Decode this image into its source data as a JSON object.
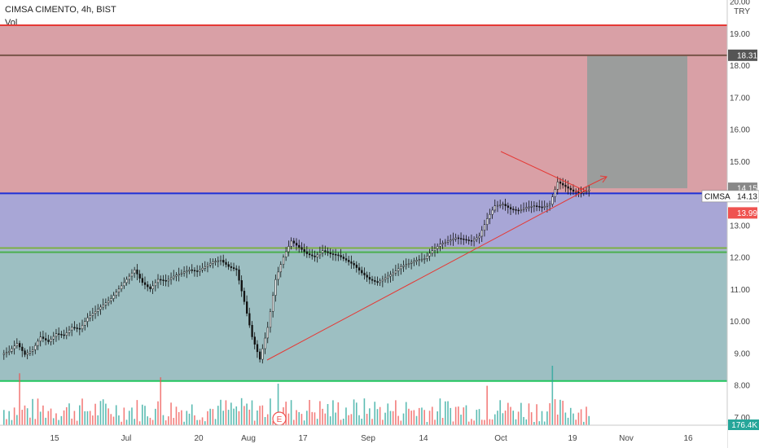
{
  "header": {
    "title": "CIMSA CIMENTO, 4h, BIST",
    "indicator": "Vol"
  },
  "chart_data": {
    "type": "candlestick",
    "symbol": "CIMSA",
    "currency": "TRY",
    "y_ticks": [
      "20.00",
      "19.00",
      "18.00",
      "17.00",
      "16.00",
      "15.00",
      "14.00",
      "13.00",
      "12.00",
      "11.00",
      "10.00",
      "9.00",
      "8.00",
      "7.00"
    ],
    "x_ticks": [
      "15",
      "Jul",
      "20",
      "Aug",
      "17",
      "Sep",
      "14",
      "Oct",
      "19",
      "Nov",
      "16"
    ],
    "ylim": [
      6.8,
      20.0
    ],
    "price_labels": [
      {
        "value": 18.31,
        "text": "18.31",
        "color": "#555555",
        "text_color": "#ffffff"
      },
      {
        "value": 14.15,
        "text": "14.15",
        "color": "#888888",
        "text_color": "#ffffff"
      },
      {
        "value": 14.13,
        "text": "14.13",
        "name": "CIMSA",
        "color": "#ffffff",
        "text_color": "#111111"
      },
      {
        "value": 13.99,
        "text": "13.99",
        "color": "#ef5350",
        "text_color": "#ffffff"
      }
    ],
    "volume_label": "176.4K",
    "horizontal_lines": [
      {
        "value": 19.25,
        "color": "#e53935"
      },
      {
        "value": 18.31,
        "color": "#795548"
      },
      {
        "value": 13.99,
        "color": "#1e2fd6"
      },
      {
        "value": 12.28,
        "color": "#7cb342"
      },
      {
        "value": 12.15,
        "color": "#4caf50"
      },
      {
        "value": 8.12,
        "color": "#22c55e"
      }
    ],
    "zones": [
      {
        "from": 13.99,
        "to": 19.25,
        "color": "#d9a0a6"
      },
      {
        "from": 12.22,
        "to": 13.99,
        "color": "#a8a6d6"
      },
      {
        "from": 8.12,
        "to": 12.22,
        "color": "#9dbfc2"
      }
    ],
    "projection_box": {
      "from": 14.15,
      "to": 18.31,
      "color": "#8f9c9a"
    },
    "series_close": [
      9.05,
      9.3,
      8.95,
      9.1,
      9.5,
      9.35,
      9.6,
      9.55,
      9.8,
      9.75,
      10.1,
      10.3,
      10.5,
      10.7,
      11.0,
      11.3,
      11.6,
      11.2,
      11.0,
      11.3,
      11.25,
      11.4,
      11.5,
      11.6,
      11.55,
      11.7,
      11.85,
      11.9,
      11.7,
      11.6,
      10.6,
      9.5,
      8.8,
      9.8,
      11.3,
      12.0,
      12.5,
      12.3,
      12.1,
      12.0,
      12.2,
      12.1,
      12.05,
      11.9,
      11.75,
      11.5,
      11.3,
      11.2,
      11.35,
      11.5,
      11.7,
      11.8,
      11.9,
      11.95,
      12.2,
      12.4,
      12.5,
      12.6,
      12.55,
      12.5,
      12.65,
      13.2,
      13.6,
      13.65,
      13.5,
      13.45,
      13.55,
      13.6,
      13.55,
      13.65,
      14.35,
      14.2,
      14.05,
      14.0,
      14.1
    ],
    "volume_max_label": "176.4K"
  }
}
